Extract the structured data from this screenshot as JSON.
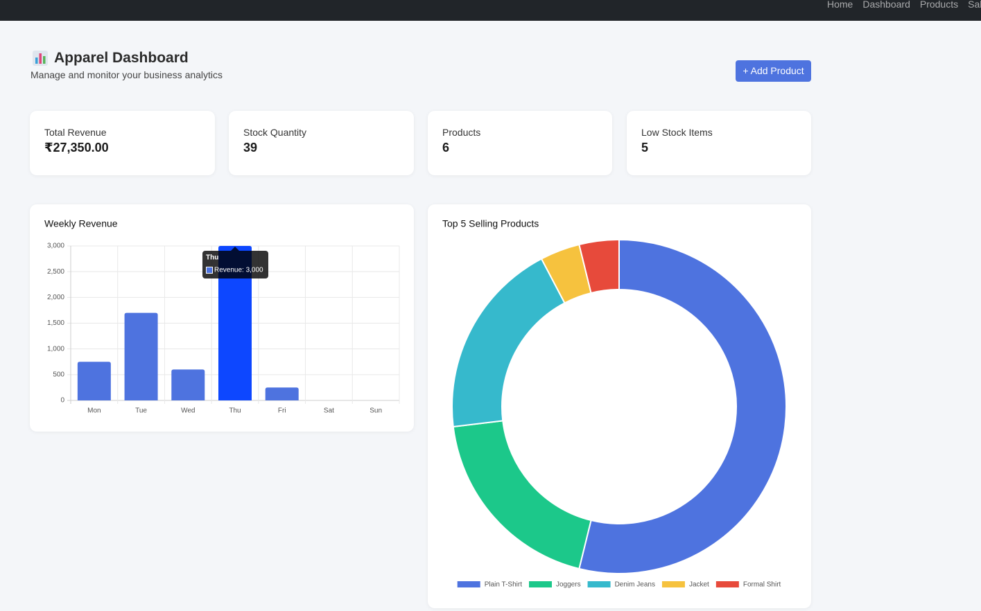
{
  "nav": {
    "links": [
      "Home",
      "Dashboard",
      "Products",
      "Sales"
    ]
  },
  "header": {
    "title": "Apparel Dashboard",
    "subtitle": "Manage and monitor your business analytics",
    "button": "+ Add Product"
  },
  "stats": [
    {
      "label": "Total Revenue",
      "value": "₹27,350.00"
    },
    {
      "label": "Stock Quantity",
      "value": 39
    },
    {
      "label": "Products",
      "value": 6
    },
    {
      "label": "Low Stock Items",
      "value": 5
    }
  ],
  "chart_data": [
    {
      "type": "bar",
      "title": "Weekly Revenue",
      "categories": [
        "Mon",
        "Tue",
        "Wed",
        "Thu",
        "Fri",
        "Sat",
        "Sun"
      ],
      "series": [
        {
          "name": "Revenue",
          "color": "#4e73df",
          "values": [
            750,
            1700,
            600,
            3000,
            250,
            0,
            0
          ]
        }
      ],
      "highlight_color": "#0d47ff",
      "ylim": [
        0,
        3000
      ],
      "yticks": [
        0,
        500,
        {
          "value": 1000,
          "label": "1,000"
        },
        {
          "value": 1500,
          "label": "1,500"
        },
        {
          "value": 2000,
          "label": "2,000"
        },
        {
          "value": 2500,
          "label": "2,500"
        },
        {
          "value": 3000,
          "label": "3,000"
        }
      ],
      "grid": true,
      "tooltip": {
        "title": "Thu",
        "text": "Revenue: 3,000"
      }
    },
    {
      "type": "doughnut",
      "title": "Top 5 Selling Products",
      "categories": [
        "Plain T-Shirt",
        "Joggers",
        "Denim Jeans",
        "Jacket",
        "Formal Shirt"
      ],
      "values": [
        14,
        5,
        5,
        1,
        1
      ],
      "colors": [
        "#4e73df",
        "#1cc88a",
        "#36b9cc",
        "#f6c23e",
        "#e74a3b"
      ],
      "legend": "bottom"
    }
  ]
}
